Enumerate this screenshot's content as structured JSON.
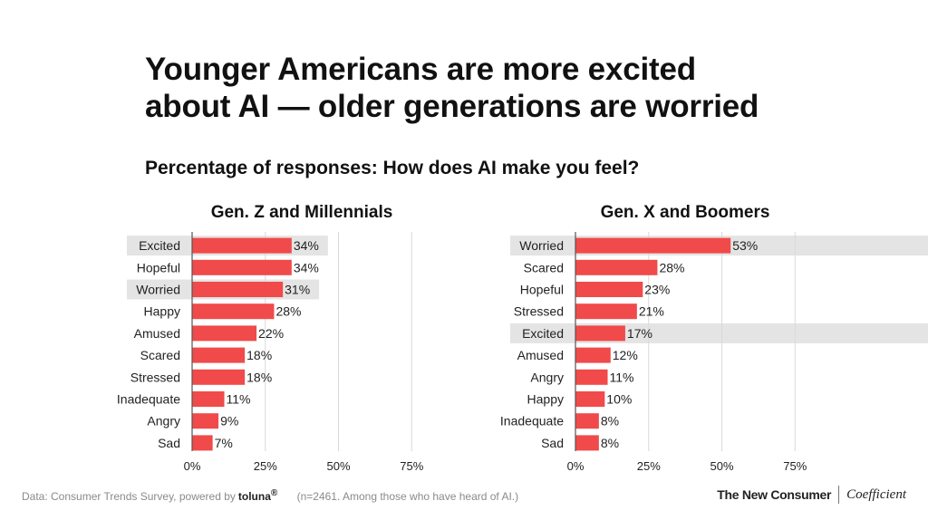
{
  "title_line1": "Younger Americans are more excited",
  "title_line2": "about AI — older generations are worried",
  "subtitle": "Percentage of responses: How does AI make you feel?",
  "footer": {
    "source": "Data: Consumer Trends Survey, powered by",
    "source_brand": "toluna",
    "source_brand_mark": "®",
    "note": "(n=2461. Among those who have heard of AI.)",
    "logo_left": "The New Consumer",
    "logo_right": "Coefficient"
  },
  "colors": {
    "bar": "#f04a4a",
    "highlight": "#e4e4e4",
    "grid": "#d9d9d9",
    "axis": "#555555"
  },
  "chart_data": [
    {
      "type": "bar",
      "orientation": "horizontal",
      "title": "Gen. Z and Millennials",
      "categories": [
        "Excited",
        "Hopeful",
        "Worried",
        "Happy",
        "Amused",
        "Scared",
        "Stressed",
        "Inadequate",
        "Angry",
        "Sad"
      ],
      "values": [
        34,
        34,
        31,
        28,
        22,
        18,
        18,
        11,
        9,
        7
      ],
      "value_labels": [
        "34%",
        "34%",
        "31%",
        "28%",
        "22%",
        "18%",
        "18%",
        "11%",
        "9%",
        "7%"
      ],
      "highlighted": [
        "Excited",
        "Worried"
      ],
      "xlim": [
        0,
        75
      ],
      "xticks": [
        0,
        25,
        50,
        75
      ],
      "xtick_labels": [
        "0%",
        "25%",
        "50%",
        "75%"
      ],
      "grid": true
    },
    {
      "type": "bar",
      "orientation": "horizontal",
      "title": "Gen. X and Boomers",
      "categories": [
        "Worried",
        "Scared",
        "Hopeful",
        "Stressed",
        "Excited",
        "Amused",
        "Angry",
        "Happy",
        "Inadequate",
        "Sad"
      ],
      "values": [
        53,
        28,
        23,
        21,
        17,
        12,
        11,
        10,
        8,
        8
      ],
      "value_labels": [
        "53%",
        "28%",
        "23%",
        "21%",
        "17%",
        "12%",
        "11%",
        "10%",
        "8%",
        "8%"
      ],
      "highlighted": [
        "Worried",
        "Excited"
      ],
      "xlim": [
        0,
        75
      ],
      "xticks": [
        0,
        25,
        50,
        75
      ],
      "xtick_labels": [
        "0%",
        "25%",
        "50%",
        "75%"
      ],
      "grid": true
    }
  ]
}
